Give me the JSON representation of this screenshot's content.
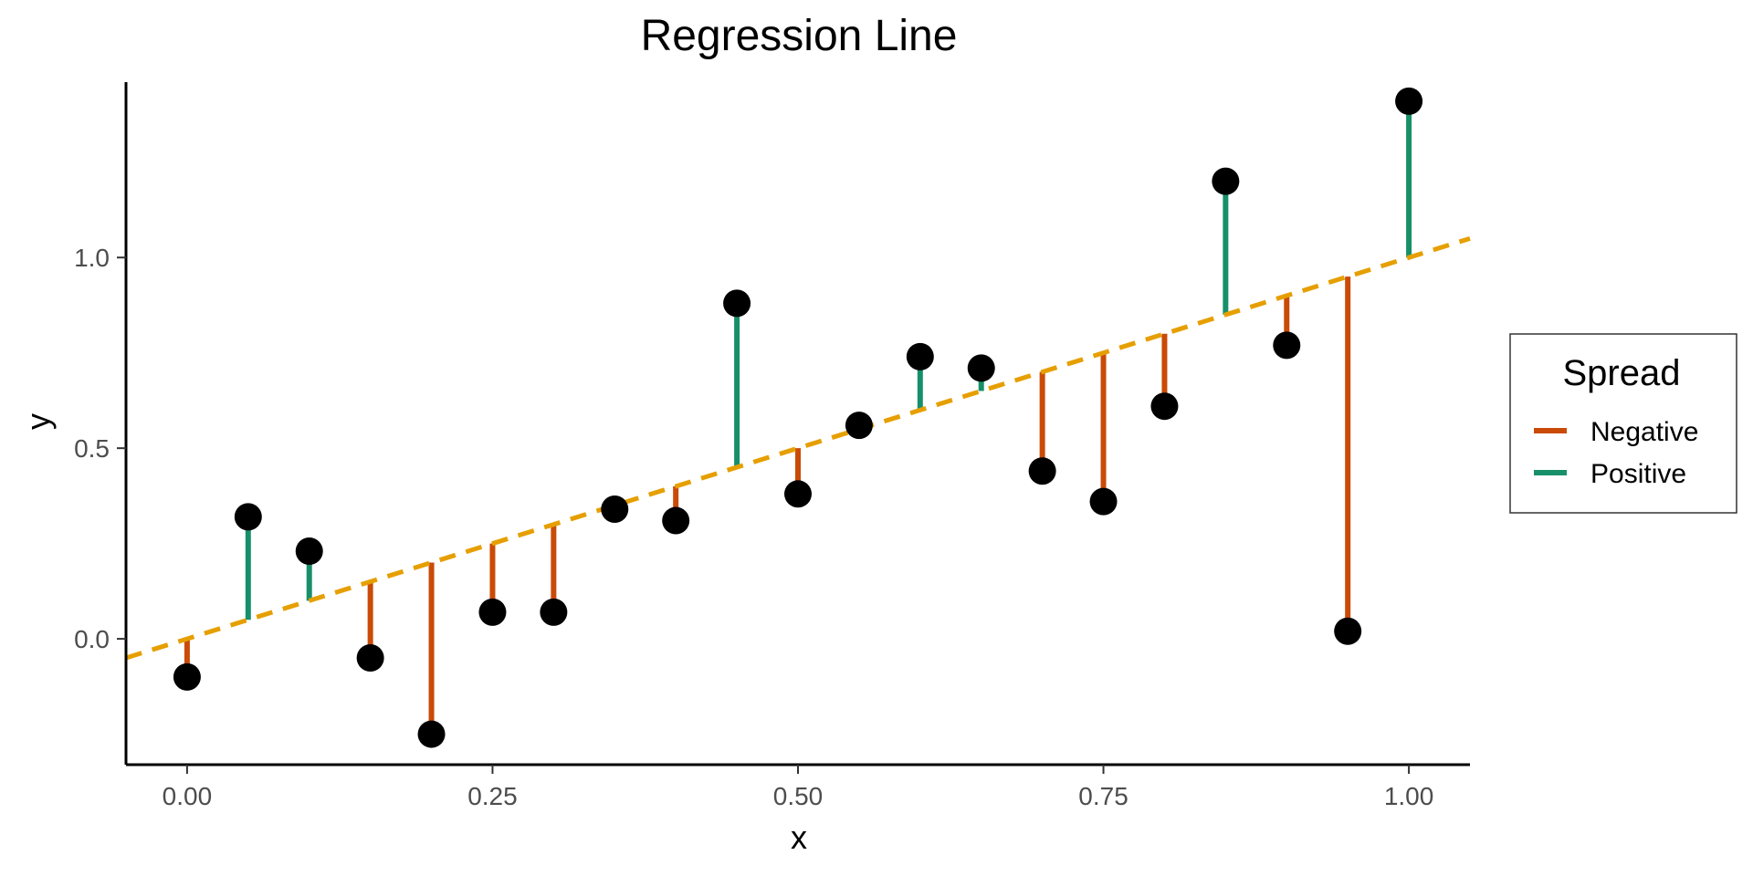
{
  "chart_data": {
    "type": "scatter",
    "title": "Regression Line",
    "xlabel": "x",
    "ylabel": "y",
    "xlim": [
      -0.05,
      1.05
    ],
    "ylim": [
      -0.33,
      1.46
    ],
    "xticks": [
      0.0,
      0.25,
      0.5,
      0.75,
      1.0
    ],
    "xtick_labels": [
      "0.00",
      "0.25",
      "0.50",
      "0.75",
      "1.00"
    ],
    "yticks": [
      0.0,
      0.5,
      1.0
    ],
    "ytick_labels": [
      "0.0",
      "0.5",
      "1.0"
    ],
    "regression_line": {
      "intercept": 0.0,
      "slope": 1.0,
      "style": "dashed",
      "color": "#E69F00"
    },
    "points": {
      "x": [
        0.0,
        0.05,
        0.1,
        0.15,
        0.2,
        0.25,
        0.3,
        0.35,
        0.4,
        0.45,
        0.5,
        0.55,
        0.6,
        0.65,
        0.7,
        0.75,
        0.8,
        0.85,
        0.9,
        0.95,
        1.0
      ],
      "y": [
        -0.1,
        0.32,
        0.23,
        -0.05,
        -0.25,
        0.07,
        0.07,
        0.34,
        0.31,
        0.88,
        0.38,
        0.56,
        0.74,
        0.71,
        0.44,
        0.36,
        0.61,
        1.2,
        0.77,
        0.02,
        1.41
      ]
    },
    "grid": false,
    "legend": {
      "title": "Spread",
      "position": "right",
      "entries": [
        {
          "label": "Negative",
          "color": "#C94B07"
        },
        {
          "label": "Positive",
          "color": "#17906A"
        }
      ]
    },
    "point_color": "#000000"
  }
}
